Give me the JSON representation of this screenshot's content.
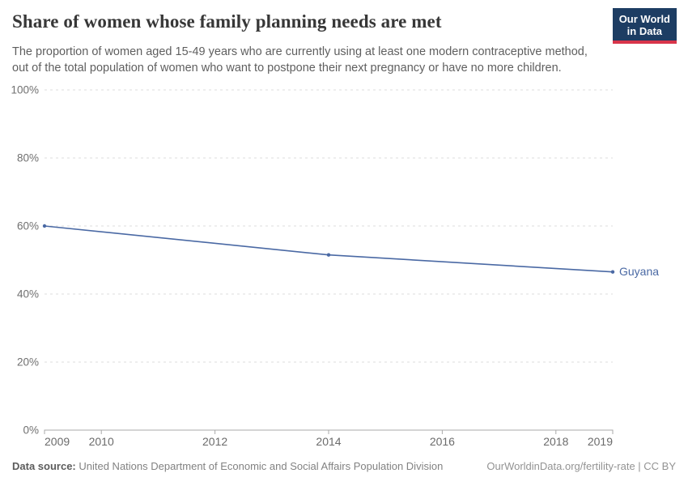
{
  "header": {
    "title": "Share of women whose family planning needs are met",
    "subtitle_lines": [
      "The proportion of women aged 15-49 years who are currently using at least one modern contraceptive method,",
      "out of the total population of women who want to postpone their next pregnancy or have no more children."
    ],
    "logo": {
      "line1": "Our World",
      "line2": "in Data",
      "bg_color": "#1d3d63",
      "accent_color": "#d8354a"
    }
  },
  "chart_data": {
    "type": "line",
    "title": "Share of women whose family planning needs are met",
    "x": [
      2009,
      2014,
      2019
    ],
    "series": [
      {
        "name": "Guyana",
        "values": [
          60,
          51.5,
          46.5
        ],
        "color": "#4a69a4"
      }
    ],
    "x_ticks": [
      2009,
      2010,
      2012,
      2014,
      2016,
      2018,
      2019
    ],
    "y_ticks": [
      0,
      20,
      40,
      60,
      80,
      100
    ],
    "y_tick_suffix": "%",
    "xlim": [
      2009,
      2019
    ],
    "ylim": [
      0,
      100
    ],
    "grid": "dashed horizontal gridlines",
    "legend_position": "label at end of line"
  },
  "footer": {
    "datasource_label": "Data source:",
    "datasource_text": " United Nations Department of Economic and Social Affairs Population Division",
    "attribution": "OurWorldinData.org/fertility-rate | CC BY"
  }
}
